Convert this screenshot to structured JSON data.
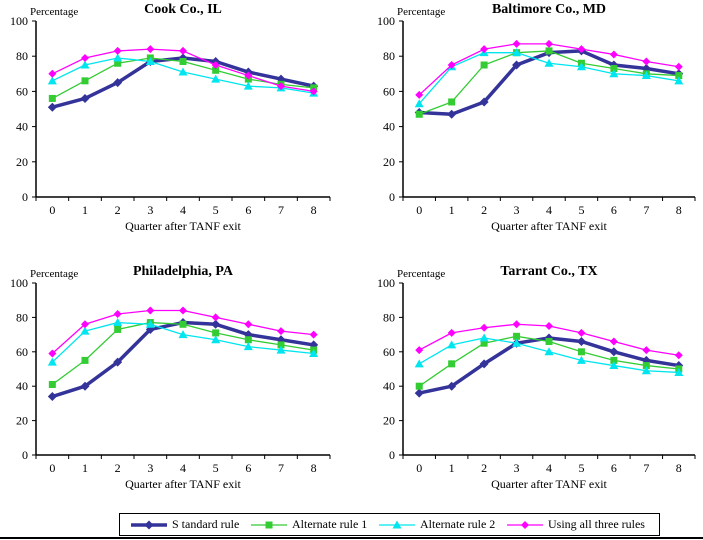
{
  "series_styles": [
    {
      "id": "standard-rule",
      "color": "#333399",
      "marker": "diamond",
      "thick": true
    },
    {
      "id": "alternate-rule-1",
      "color": "#33CC33",
      "marker": "square",
      "thick": false
    },
    {
      "id": "alternate-rule-2",
      "color": "#00E5EE",
      "marker": "triangle",
      "thick": false
    },
    {
      "id": "using-all-three-rules",
      "color": "#FF00FF",
      "marker": "diamond",
      "thick": false
    }
  ],
  "legend": {
    "items": [
      {
        "label": "S tandard rule"
      },
      {
        "label": "Alternate rule 1"
      },
      {
        "label": "Alternate rule 2"
      },
      {
        "label": "Using all three rules"
      }
    ]
  },
  "chart_data": [
    {
      "type": "line",
      "title": "Cook Co., IL",
      "xlabel": "Quarter after TANF exit",
      "ylabel": "Percentage",
      "x": [
        "0",
        "1",
        "2",
        "3",
        "4",
        "5",
        "6",
        "7",
        "8"
      ],
      "ylim": [
        0,
        100
      ],
      "yticks": [
        0,
        20,
        40,
        60,
        80,
        100
      ],
      "grid": false,
      "series": [
        {
          "name": "S tandard rule",
          "values": [
            51,
            56,
            65,
            77,
            79,
            77,
            71,
            67,
            63
          ]
        },
        {
          "name": "Alternate rule 1",
          "values": [
            56,
            66,
            76,
            79,
            77,
            72,
            67,
            64,
            62
          ]
        },
        {
          "name": "Alternate rule 2",
          "values": [
            66,
            75,
            79,
            77,
            71,
            67,
            63,
            62,
            59
          ]
        },
        {
          "name": "Using all three rules",
          "values": [
            70,
            79,
            83,
            84,
            83,
            75,
            69,
            63,
            60
          ]
        }
      ]
    },
    {
      "type": "line",
      "title": "Baltimore Co., MD",
      "xlabel": "Quarter after TANF exit",
      "ylabel": "Percentage",
      "x": [
        "0",
        "1",
        "2",
        "3",
        "4",
        "5",
        "6",
        "7",
        "8"
      ],
      "ylim": [
        0,
        100
      ],
      "yticks": [
        0,
        20,
        40,
        60,
        80,
        100
      ],
      "grid": false,
      "series": [
        {
          "name": "S tandard rule",
          "values": [
            48,
            47,
            54,
            75,
            82,
            83,
            75,
            73,
            70
          ]
        },
        {
          "name": "Alternate rule 1",
          "values": [
            47,
            54,
            75,
            82,
            83,
            76,
            73,
            70,
            69
          ]
        },
        {
          "name": "Alternate rule 2",
          "values": [
            53,
            74,
            82,
            82,
            76,
            74,
            70,
            69,
            66
          ]
        },
        {
          "name": "Using all three rules",
          "values": [
            58,
            75,
            84,
            87,
            87,
            84,
            81,
            77,
            74
          ]
        }
      ]
    },
    {
      "type": "line",
      "title": "Philadelphia, PA",
      "xlabel": "Quarter after TANF exit",
      "ylabel": "Percentage",
      "x": [
        "0",
        "1",
        "2",
        "3",
        "4",
        "5",
        "6",
        "7",
        "8"
      ],
      "ylim": [
        0,
        100
      ],
      "yticks": [
        0,
        20,
        40,
        60,
        80,
        100
      ],
      "grid": false,
      "series": [
        {
          "name": "S tandard rule",
          "values": [
            34,
            40,
            54,
            73,
            77,
            76,
            70,
            67,
            64
          ]
        },
        {
          "name": "Alternate rule 1",
          "values": [
            41,
            55,
            73,
            77,
            76,
            71,
            67,
            64,
            61
          ]
        },
        {
          "name": "Alternate rule 2",
          "values": [
            54,
            72,
            77,
            76,
            70,
            67,
            63,
            61,
            59
          ]
        },
        {
          "name": "Using all three rules",
          "values": [
            59,
            76,
            82,
            84,
            84,
            80,
            76,
            72,
            70
          ]
        }
      ]
    },
    {
      "type": "line",
      "title": "Tarrant Co., TX",
      "xlabel": "Quarter after TANF exit",
      "ylabel": "Percentage",
      "x": [
        "0",
        "1",
        "2",
        "3",
        "4",
        "5",
        "6",
        "7",
        "8"
      ],
      "ylim": [
        0,
        100
      ],
      "yticks": [
        0,
        20,
        40,
        60,
        80,
        100
      ],
      "grid": false,
      "series": [
        {
          "name": "S tandard rule",
          "values": [
            36,
            40,
            53,
            65,
            68,
            66,
            60,
            55,
            52
          ]
        },
        {
          "name": "Alternate rule 1",
          "values": [
            40,
            53,
            65,
            69,
            66,
            60,
            55,
            52,
            50
          ]
        },
        {
          "name": "Alternate rule 2",
          "values": [
            53,
            64,
            68,
            65,
            60,
            55,
            52,
            49,
            48
          ]
        },
        {
          "name": "Using all three rules",
          "values": [
            61,
            71,
            74,
            76,
            75,
            71,
            66,
            61,
            58
          ]
        }
      ]
    }
  ]
}
